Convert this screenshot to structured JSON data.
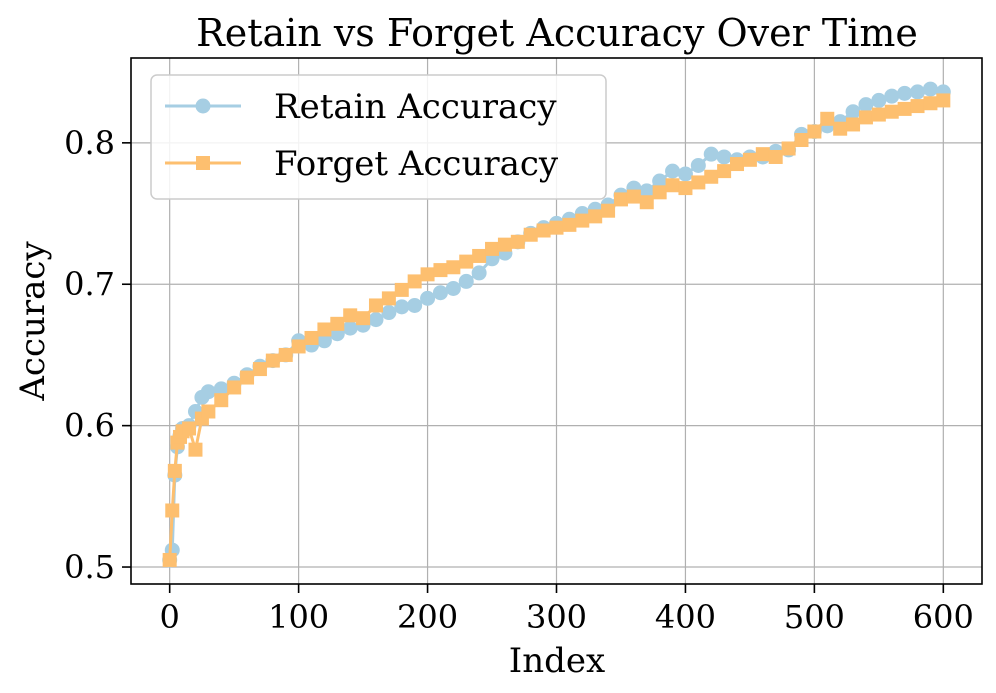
{
  "chart_data": {
    "type": "line",
    "title": "Retain vs Forget Accuracy Over Time",
    "xlabel": "Index",
    "ylabel": "Accuracy",
    "xlim": [
      -30,
      630
    ],
    "ylim": [
      0.488,
      0.86
    ],
    "xticks": [
      0,
      100,
      200,
      300,
      400,
      500,
      600
    ],
    "yticks": [
      0.5,
      0.6,
      0.7,
      0.8
    ],
    "xtick_labels": [
      "0",
      "100",
      "200",
      "300",
      "400",
      "500",
      "600"
    ],
    "ytick_labels": [
      "0.5",
      "0.6",
      "0.7",
      "0.8"
    ],
    "grid": true,
    "legend_position": "upper-left",
    "series": [
      {
        "name": "Retain Accuracy",
        "color": "#a6cee3",
        "marker": "circle",
        "points": [
          [
            0,
            0.505
          ],
          [
            2,
            0.512
          ],
          [
            4,
            0.565
          ],
          [
            6,
            0.585
          ],
          [
            8,
            0.593
          ],
          [
            10,
            0.598
          ],
          [
            15,
            0.6
          ],
          [
            20,
            0.61
          ],
          [
            25,
            0.62
          ],
          [
            30,
            0.624
          ],
          [
            40,
            0.626
          ],
          [
            50,
            0.63
          ],
          [
            60,
            0.636
          ],
          [
            70,
            0.642
          ],
          [
            80,
            0.646
          ],
          [
            90,
            0.65
          ],
          [
            100,
            0.66
          ],
          [
            110,
            0.657
          ],
          [
            120,
            0.66
          ],
          [
            130,
            0.665
          ],
          [
            140,
            0.669
          ],
          [
            150,
            0.671
          ],
          [
            160,
            0.675
          ],
          [
            170,
            0.68
          ],
          [
            180,
            0.684
          ],
          [
            190,
            0.685
          ],
          [
            200,
            0.69
          ],
          [
            210,
            0.694
          ],
          [
            220,
            0.697
          ],
          [
            230,
            0.702
          ],
          [
            240,
            0.708
          ],
          [
            250,
            0.718
          ],
          [
            260,
            0.722
          ],
          [
            270,
            0.73
          ],
          [
            280,
            0.736
          ],
          [
            290,
            0.74
          ],
          [
            300,
            0.743
          ],
          [
            310,
            0.746
          ],
          [
            320,
            0.75
          ],
          [
            330,
            0.753
          ],
          [
            340,
            0.756
          ],
          [
            350,
            0.763
          ],
          [
            360,
            0.768
          ],
          [
            370,
            0.766
          ],
          [
            380,
            0.773
          ],
          [
            390,
            0.78
          ],
          [
            400,
            0.778
          ],
          [
            410,
            0.784
          ],
          [
            420,
            0.792
          ],
          [
            430,
            0.79
          ],
          [
            440,
            0.788
          ],
          [
            450,
            0.79
          ],
          [
            460,
            0.79
          ],
          [
            470,
            0.794
          ],
          [
            480,
            0.795
          ],
          [
            490,
            0.806
          ],
          [
            500,
            0.808
          ],
          [
            510,
            0.812
          ],
          [
            520,
            0.815
          ],
          [
            530,
            0.822
          ],
          [
            540,
            0.827
          ],
          [
            550,
            0.83
          ],
          [
            560,
            0.833
          ],
          [
            570,
            0.835
          ],
          [
            580,
            0.836
          ],
          [
            590,
            0.838
          ],
          [
            600,
            0.836
          ]
        ]
      },
      {
        "name": "Forget Accuracy",
        "color": "#fdbf6f",
        "marker": "square",
        "points": [
          [
            0,
            0.505
          ],
          [
            2,
            0.54
          ],
          [
            4,
            0.568
          ],
          [
            6,
            0.588
          ],
          [
            8,
            0.592
          ],
          [
            10,
            0.596
          ],
          [
            15,
            0.598
          ],
          [
            20,
            0.583
          ],
          [
            25,
            0.605
          ],
          [
            30,
            0.61
          ],
          [
            40,
            0.618
          ],
          [
            50,
            0.627
          ],
          [
            60,
            0.634
          ],
          [
            70,
            0.64
          ],
          [
            80,
            0.646
          ],
          [
            90,
            0.65
          ],
          [
            100,
            0.656
          ],
          [
            110,
            0.662
          ],
          [
            120,
            0.668
          ],
          [
            130,
            0.672
          ],
          [
            140,
            0.678
          ],
          [
            150,
            0.676
          ],
          [
            160,
            0.685
          ],
          [
            170,
            0.69
          ],
          [
            180,
            0.696
          ],
          [
            190,
            0.702
          ],
          [
            200,
            0.707
          ],
          [
            210,
            0.71
          ],
          [
            220,
            0.712
          ],
          [
            230,
            0.716
          ],
          [
            240,
            0.72
          ],
          [
            250,
            0.725
          ],
          [
            260,
            0.728
          ],
          [
            270,
            0.73
          ],
          [
            280,
            0.735
          ],
          [
            290,
            0.738
          ],
          [
            300,
            0.74
          ],
          [
            310,
            0.742
          ],
          [
            320,
            0.745
          ],
          [
            330,
            0.748
          ],
          [
            340,
            0.752
          ],
          [
            350,
            0.76
          ],
          [
            360,
            0.762
          ],
          [
            370,
            0.758
          ],
          [
            380,
            0.765
          ],
          [
            390,
            0.77
          ],
          [
            400,
            0.768
          ],
          [
            410,
            0.772
          ],
          [
            420,
            0.776
          ],
          [
            430,
            0.78
          ],
          [
            440,
            0.785
          ],
          [
            450,
            0.788
          ],
          [
            460,
            0.792
          ],
          [
            470,
            0.79
          ],
          [
            480,
            0.796
          ],
          [
            490,
            0.802
          ],
          [
            500,
            0.808
          ],
          [
            510,
            0.817
          ],
          [
            520,
            0.81
          ],
          [
            530,
            0.813
          ],
          [
            540,
            0.818
          ],
          [
            550,
            0.82
          ],
          [
            560,
            0.822
          ],
          [
            570,
            0.824
          ],
          [
            580,
            0.826
          ],
          [
            590,
            0.828
          ],
          [
            600,
            0.83
          ]
        ]
      }
    ]
  }
}
